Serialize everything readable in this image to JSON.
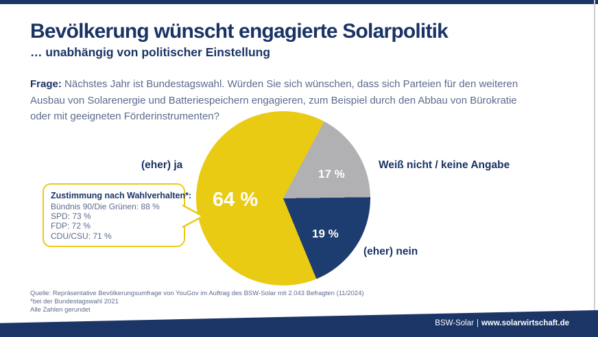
{
  "meta": {
    "brand_navy": "#1b3666",
    "text_navy": "#1a3365",
    "text_slate": "#5b6b8c",
    "accent_yellow": "#e9cb14"
  },
  "chart_data": {
    "type": "pie",
    "title": "Bevölkerung wünscht engagierte Solarpolitik",
    "subtitle": "… unabhängig von politischer Einstellung",
    "slices": [
      {
        "label": "(eher) ja",
        "value": 64,
        "value_label": "64 %",
        "color": "#e9cb14"
      },
      {
        "label": "Weiß nicht / keine Angabe",
        "value": 17,
        "value_label": "17 %",
        "color": "#b1b1b4"
      },
      {
        "label": "(eher) nein",
        "value": 19,
        "value_label": "19 %",
        "color": "#1d3c6f"
      }
    ],
    "start_angle_deg": 28,
    "render_order": [
      1,
      2,
      0
    ],
    "labels_style": "direct",
    "legend": "none",
    "breakdown": {
      "title": "Zustimmung nach Wahlverhalten*:",
      "items": [
        {
          "party": "Bündnis 90/Die Grünen",
          "value": 88,
          "value_label": "88 %"
        },
        {
          "party": "SPD",
          "value": 73,
          "value_label": "73 %"
        },
        {
          "party": "FDP",
          "value": 72,
          "value_label": "72 %"
        },
        {
          "party": "CDU/CSU",
          "value": 71,
          "value_label": "71 %"
        }
      ]
    }
  },
  "question": {
    "label": "Frage:",
    "lines": [
      "Nächstes Jahr ist Bundestagswahl. Würden Sie sich wünschen, dass sich Parteien für den weiteren",
      "Ausbau von Solarenergie und Batteriespeichern engagieren, zum Beispiel durch den Abbau von Bürokratie",
      "oder mit geeigneten Förderinstrumenten?"
    ]
  },
  "source": {
    "lines": [
      "Quelle: Repräsentative Bevölkerungsumfrage von YouGov im Auftrag des BSW-Solar mit 2.043 Befragten (11/2024)",
      "*bei der Bundestagswahl 2021",
      "Alle Zahlen gerundet"
    ]
  },
  "footer": {
    "org": "BSW-Solar",
    "separator": "|",
    "url": "www.solarwirtschaft.de"
  }
}
